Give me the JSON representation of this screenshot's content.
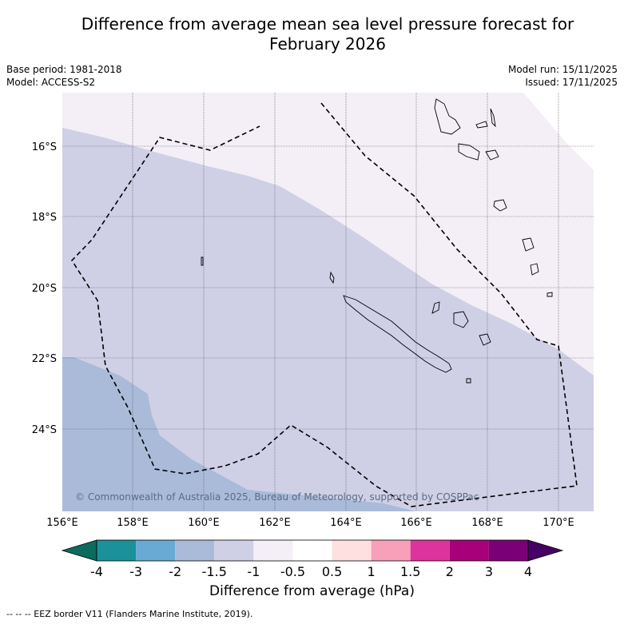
{
  "title": {
    "line1": "Difference from average mean sea level pressure forecast for",
    "line2": "February 2026"
  },
  "meta": {
    "base_period": "Base period: 1981-2018",
    "model": "Model: ACCESS-S2",
    "model_run": "Model run: 15/11/2025",
    "issued": "Issued: 17/11/2025"
  },
  "map": {
    "lat_labels": [
      "16°S",
      "18°S",
      "20°S",
      "22°S",
      "24°S"
    ],
    "lon_labels": [
      "156°E",
      "158°E",
      "160°E",
      "162°E",
      "164°E",
      "166°E",
      "168°E",
      "170°E"
    ],
    "copyright": "© Commonwealth of Australia 2025, Bureau of Meteorology, supported by COSPPac",
    "colors": {
      "band_minus2_to_minus1_5": "#a9bbd9",
      "band_minus1_5_to_minus1": "#cfd0e6",
      "band_minus1_to_minus0_5": "#f4eef6",
      "outside": "#ffffff"
    }
  },
  "colorbar": {
    "title": "Difference from average (hPa)",
    "tick_labels": [
      "-4",
      "-3",
      "-2",
      "-1.5",
      "-1",
      "-0.5",
      "0.5",
      "1",
      "1.5",
      "2",
      "3",
      "4"
    ],
    "colors": [
      "#0b6b5d",
      "#1b9199",
      "#68aad4",
      "#a9bbd9",
      "#cfd0e6",
      "#f4eef6",
      "#ffffff",
      "#fde0df",
      "#f89fba",
      "#dc339c",
      "#a6007a",
      "#7a0077",
      "#470064"
    ]
  },
  "footer": {
    "legend": "--  --  -- EEZ border V11 (Flanders Marine Institute, 2019)."
  }
}
